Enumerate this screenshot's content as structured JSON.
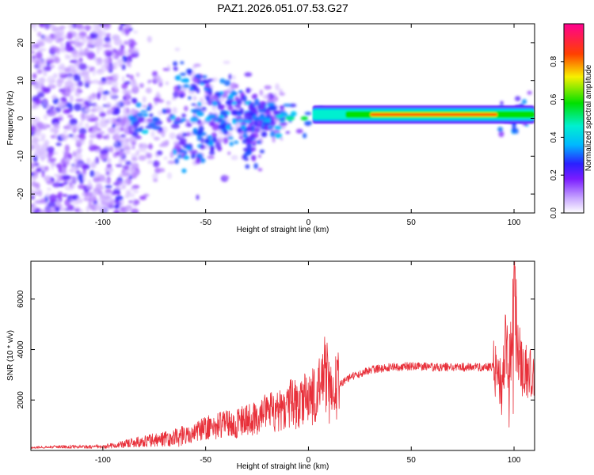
{
  "figure_title": "PAZ1.2026.051.07.53.G27",
  "colors": {
    "snr_line": "#e8303a",
    "axis": "#000000",
    "background": "#ffffff"
  },
  "chart_data": [
    {
      "type": "heatmap",
      "title": "PAZ1.2026.051.07.53.G27",
      "xlabel": "Height of straight line (km)",
      "ylabel": "Frequency (Hz)",
      "xlim": [
        -135,
        110
      ],
      "ylim": [
        -25,
        25
      ],
      "x_ticks": [
        -100,
        -50,
        0,
        50,
        100
      ],
      "x_tick_labels": [
        "-100",
        "-50",
        "0",
        "50",
        "100"
      ],
      "y_ticks": [
        -20,
        -10,
        0,
        10,
        20
      ],
      "y_tick_labels": [
        "-20",
        "-10",
        "0",
        "10",
        "20"
      ],
      "colorbar": {
        "label": "Normalized spectral amplitude",
        "range": [
          0,
          1
        ],
        "ticks": [
          0.0,
          0.2,
          0.4,
          0.6,
          0.8
        ],
        "tick_labels": [
          "0.0",
          "0.2",
          "0.4",
          "0.6",
          "0.8"
        ],
        "colormap": "rainbow (white-violet-blue-cyan-green-yellow-red-magenta)"
      },
      "description_ridge": {
        "ridge_frequency_hz": 1,
        "strong_ridge_x_range": [
          0,
          110
        ],
        "scatter_x_range": [
          -135,
          -80
        ]
      }
    },
    {
      "type": "line",
      "xlabel": "Height of straight line (km)",
      "ylabel": "SNR (10 * v/v)",
      "xlim": [
        -135,
        110
      ],
      "ylim": [
        0,
        7500
      ],
      "x_ticks": [
        -100,
        -50,
        0,
        50,
        100
      ],
      "x_tick_labels": [
        "-100",
        "-50",
        "0",
        "50",
        "100"
      ],
      "y_ticks": [
        2000,
        4000,
        6000
      ],
      "y_tick_labels": [
        "2000",
        "4000",
        "6000"
      ],
      "series": [
        {
          "name": "SNR",
          "x": [
            -135,
            -120,
            -100,
            -90,
            -80,
            -70,
            -60,
            -55,
            -50,
            -45,
            -40,
            -35,
            -30,
            -25,
            -20,
            -15,
            -10,
            -5,
            0,
            5,
            7,
            8,
            10,
            15,
            20,
            25,
            30,
            40,
            50,
            60,
            70,
            80,
            90,
            94,
            96,
            98,
            100,
            102,
            105,
            110
          ],
          "y": [
            120,
            150,
            150,
            250,
            380,
            430,
            600,
            700,
            900,
            950,
            1050,
            1050,
            1200,
            1250,
            1500,
            1500,
            1800,
            1900,
            2000,
            2300,
            3200,
            3500,
            2300,
            2600,
            2900,
            3050,
            3200,
            3300,
            3350,
            3300,
            3300,
            3300,
            3300,
            2600,
            4500,
            2300,
            7200,
            3500,
            3150,
            3150
          ]
        }
      ]
    }
  ]
}
